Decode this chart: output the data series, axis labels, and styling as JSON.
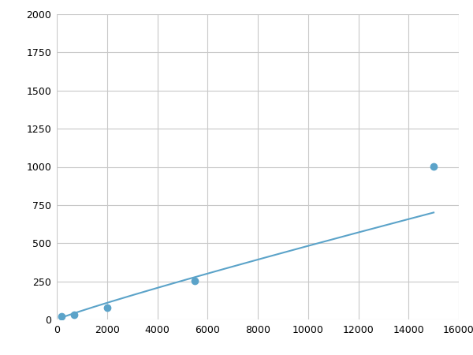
{
  "x": [
    200,
    700,
    2000,
    5500,
    15000
  ],
  "y": [
    20,
    30,
    75,
    255,
    1005
  ],
  "line_color": "#5ba3c9",
  "marker_color": "#5ba3c9",
  "marker_size": 6,
  "xlim": [
    0,
    16000
  ],
  "ylim": [
    0,
    2000
  ],
  "xticks": [
    0,
    2000,
    4000,
    6000,
    8000,
    10000,
    12000,
    14000,
    16000
  ],
  "yticks": [
    0,
    250,
    500,
    750,
    1000,
    1250,
    1500,
    1750,
    2000
  ],
  "grid_color": "#c8c8c8",
  "background_color": "#ffffff",
  "figsize": [
    6.0,
    4.5
  ],
  "dpi": 100
}
